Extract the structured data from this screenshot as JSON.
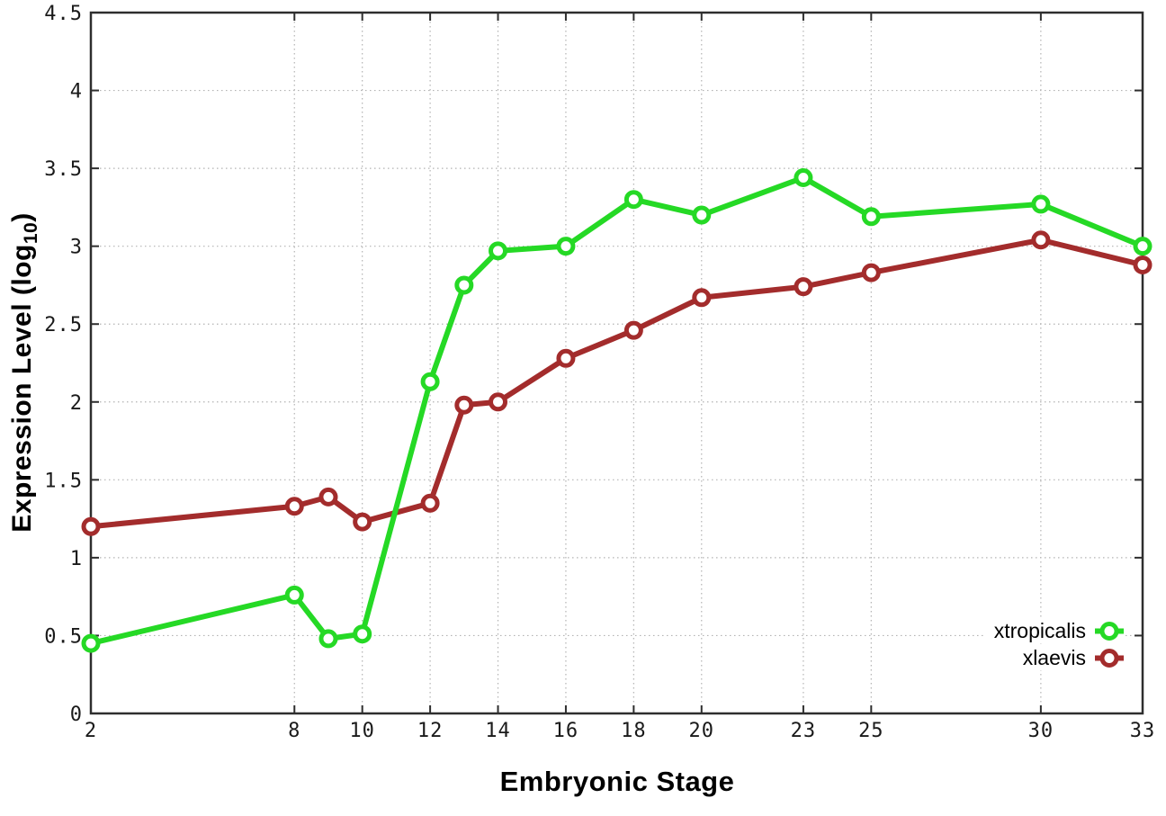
{
  "figure": {
    "background": "#ffffff",
    "axis_color": "#2e2e2e",
    "grid_color": "#b3b3b3",
    "tick_label_color": "#1a1a1a",
    "title_color": "#000000"
  },
  "chart_data": {
    "type": "line",
    "title": "",
    "xlabel": "Embryonic Stage",
    "ylabel": "Expression Level (log10)",
    "ylabel_rich": {
      "prefix": "Expression Level (log",
      "subscript": "10",
      "suffix": ")"
    },
    "xlim": [
      2,
      33
    ],
    "ylim": [
      0,
      4.5
    ],
    "x_ticks": [
      2,
      8,
      10,
      12,
      14,
      16,
      18,
      20,
      23,
      25,
      30,
      33
    ],
    "y_ticks": [
      0,
      0.5,
      1,
      1.5,
      2,
      2.5,
      3,
      3.5,
      4,
      4.5
    ],
    "grid": "dotted both axes, mirrored inward ticks on all borders",
    "legend_position": "inside bottom-right, marker right of label",
    "x": [
      2,
      8,
      9,
      10,
      12,
      13,
      14,
      16,
      18,
      20,
      23,
      25,
      30,
      33
    ],
    "series": [
      {
        "name": "xtropicalis",
        "color": "#25d925",
        "marker": "open-circle",
        "values": [
          0.45,
          0.76,
          0.48,
          0.51,
          2.13,
          2.75,
          2.97,
          3.0,
          3.3,
          3.2,
          3.44,
          3.19,
          3.27,
          3.0
        ]
      },
      {
        "name": "xlaevis",
        "color": "#a32c2c",
        "marker": "open-circle",
        "values": [
          1.2,
          1.33,
          1.39,
          1.23,
          1.35,
          1.98,
          2.0,
          2.28,
          2.46,
          2.67,
          2.74,
          2.83,
          3.04,
          2.88
        ]
      }
    ]
  }
}
